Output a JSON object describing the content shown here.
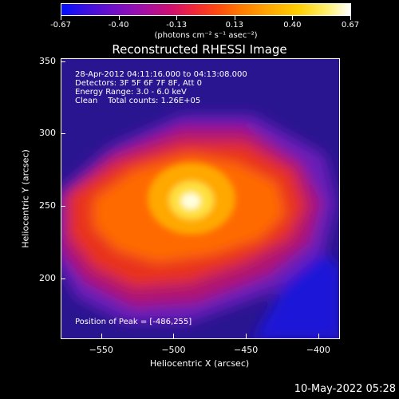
{
  "colorbar": {
    "ticks": [
      "-0.67",
      "-0.40",
      "-0.13",
      "0.13",
      "0.40",
      "0.67"
    ],
    "units": "(photons cm⁻² s⁻¹ asec⁻²)"
  },
  "title": "Reconstructed RHESSI Image",
  "info": {
    "time": "28-Apr-2012 04:11:16.000 to 04:13:08.000",
    "detectors": "Detectors: 3F 5F 6F 7F 8F, Att 0",
    "energy": "Energy Range: 3.0 - 6.0 keV",
    "clean": "Clean    Total counts: 1.26E+05",
    "peak": "Position of Peak = [-486,255]"
  },
  "axes": {
    "xlabel": "Heliocentric X (arcsec)",
    "ylabel": "Heliocentric Y (arcsec)",
    "xticks": [
      "-550",
      "-500",
      "-450",
      "-400"
    ],
    "yticks": [
      "350",
      "300",
      "250",
      "200"
    ]
  },
  "timestamp": "10-May-2022 05:28",
  "chart_data": {
    "type": "heatmap",
    "title": "Reconstructed RHESSI Image",
    "xlabel": "Heliocentric X (arcsec)",
    "ylabel": "Heliocentric Y (arcsec)",
    "xlim": [
      -578,
      -385
    ],
    "ylim": [
      158,
      352
    ],
    "zlim": [
      -0.67,
      0.67
    ],
    "colorbar_ticks": [
      -0.67,
      -0.4,
      -0.13,
      0.13,
      0.4,
      0.67
    ],
    "peak": [
      -486,
      255
    ],
    "colors": [
      "#0010ff",
      "#7010c8",
      "#d01070",
      "#ff4a10",
      "#ffa800",
      "#ffffff"
    ]
  }
}
